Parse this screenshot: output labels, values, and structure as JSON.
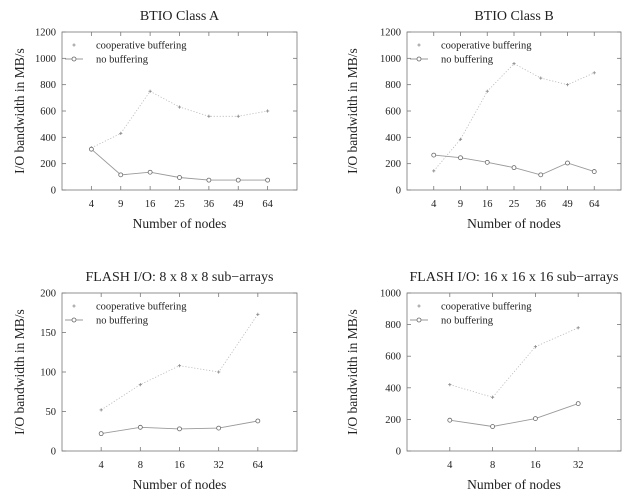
{
  "chart_data": [
    {
      "type": "line",
      "title": "BTIO Class A",
      "xlabel": "Number of nodes",
      "ylabel": "I/O bandwidth in MB/s",
      "categories": [
        "4",
        "9",
        "16",
        "25",
        "36",
        "49",
        "64"
      ],
      "ylim": [
        0,
        1200
      ],
      "yticks": [
        0,
        200,
        400,
        600,
        800,
        1000,
        1200
      ],
      "legend": "top-left",
      "grid": false,
      "series": [
        {
          "name": "cooperative buffering",
          "values": [
            320,
            430,
            750,
            630,
            560,
            560,
            600
          ],
          "style": "dotted-plus"
        },
        {
          "name": "no buffering",
          "values": [
            310,
            115,
            135,
            95,
            75,
            75,
            75
          ],
          "style": "solid-circle"
        }
      ]
    },
    {
      "type": "line",
      "title": "BTIO Class B",
      "xlabel": "Number of nodes",
      "ylabel": "I/O bandwidth in MB/s",
      "categories": [
        "4",
        "9",
        "16",
        "25",
        "36",
        "49",
        "64"
      ],
      "ylim": [
        0,
        1200
      ],
      "yticks": [
        0,
        200,
        400,
        600,
        800,
        1000,
        1200
      ],
      "legend": "top-left",
      "grid": false,
      "series": [
        {
          "name": "cooperative buffering",
          "values": [
            145,
            385,
            750,
            960,
            850,
            800,
            890
          ],
          "style": "dotted-plus"
        },
        {
          "name": "no buffering",
          "values": [
            265,
            245,
            210,
            170,
            115,
            205,
            140
          ],
          "style": "solid-circle"
        }
      ]
    },
    {
      "type": "line",
      "title": "FLASH I/O: 8 x 8 x 8 sub−arrays",
      "xlabel": "Number of nodes",
      "ylabel": "I/O bandwidth in MB/s",
      "categories": [
        "4",
        "8",
        "16",
        "32",
        "64"
      ],
      "ylim": [
        0,
        200
      ],
      "yticks": [
        0,
        50,
        100,
        150,
        200
      ],
      "legend": "top-left",
      "grid": false,
      "series": [
        {
          "name": "cooperative buffering",
          "values": [
            52,
            84,
            108,
            100,
            173
          ],
          "style": "dotted-plus"
        },
        {
          "name": "no buffering",
          "values": [
            22,
            30,
            28,
            29,
            38
          ],
          "style": "solid-circle"
        }
      ]
    },
    {
      "type": "line",
      "title": "FLASH I/O: 16 x 16 x 16 sub−arrays",
      "xlabel": "Number of nodes",
      "ylabel": "I/O bandwidth in MB/s",
      "categories": [
        "4",
        "8",
        "16",
        "32"
      ],
      "ylim": [
        0,
        1000
      ],
      "yticks": [
        0,
        200,
        400,
        600,
        800,
        1000
      ],
      "legend": "top-left",
      "grid": false,
      "series": [
        {
          "name": "cooperative buffering",
          "values": [
            420,
            340,
            660,
            780
          ],
          "style": "dotted-plus"
        },
        {
          "name": "no buffering",
          "values": [
            195,
            155,
            205,
            300
          ],
          "style": "solid-circle"
        }
      ]
    }
  ]
}
